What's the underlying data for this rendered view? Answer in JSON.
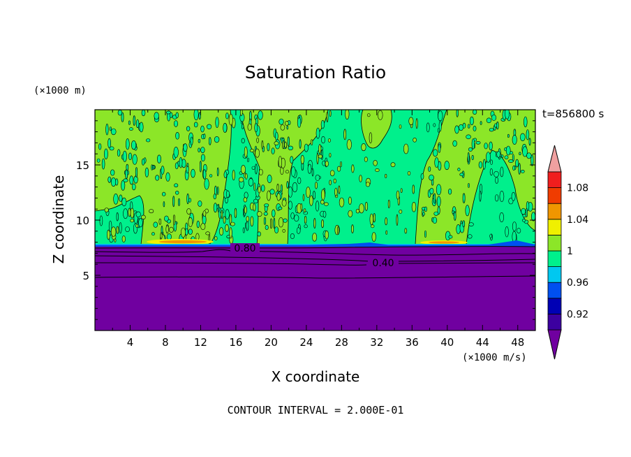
{
  "chart_data": {
    "type": "heatmap",
    "title": "Saturation Ratio",
    "xlabel": "X coordinate",
    "ylabel": "Z coordinate",
    "x_unit": "(×1000 m/s)",
    "y_unit": "(×1000 m)",
    "time_label": "t=856800 s",
    "footer": "CONTOUR INTERVAL = 2.000E-01",
    "xlim": [
      0,
      50
    ],
    "ylim": [
      0,
      20
    ],
    "x_ticks": [
      4,
      8,
      12,
      16,
      20,
      24,
      28,
      32,
      36,
      40,
      44,
      48
    ],
    "y_ticks": [
      5,
      10,
      15
    ],
    "contour_labels": [
      {
        "text": "0.80",
        "x": 17.5,
        "z": 7.2
      },
      {
        "text": "0.40",
        "x": 33.0,
        "z": 6.2
      }
    ],
    "colorbar": {
      "tick_labels": [
        "0.92",
        "0.96",
        "1",
        "1.04",
        "1.08"
      ],
      "tick_values": [
        0.92,
        0.96,
        1.0,
        1.04,
        1.08
      ],
      "levels": [
        0.9,
        0.92,
        0.94,
        0.96,
        0.98,
        1.0,
        1.02,
        1.04,
        1.06,
        1.08,
        1.1
      ],
      "below_color": "#7000a0",
      "above_color": "#f0a0a0",
      "band_colors": [
        "#3c00a0",
        "#0000b4",
        "#0050f0",
        "#00c8f0",
        "#00f08c",
        "#8ce628",
        "#f0f000",
        "#f09600",
        "#f03c00",
        "#f01e1e"
      ]
    },
    "regions": {
      "dry_layer_top_z": 7.7,
      "moist_layer_color": "#00f08c",
      "upper_patch_color": "#8ce628",
      "peak_color": "#f09600",
      "peak_locations_x": [
        10,
        39
      ],
      "lower_layer_contours_z": [
        7.2,
        6.3,
        5.0
      ]
    }
  }
}
